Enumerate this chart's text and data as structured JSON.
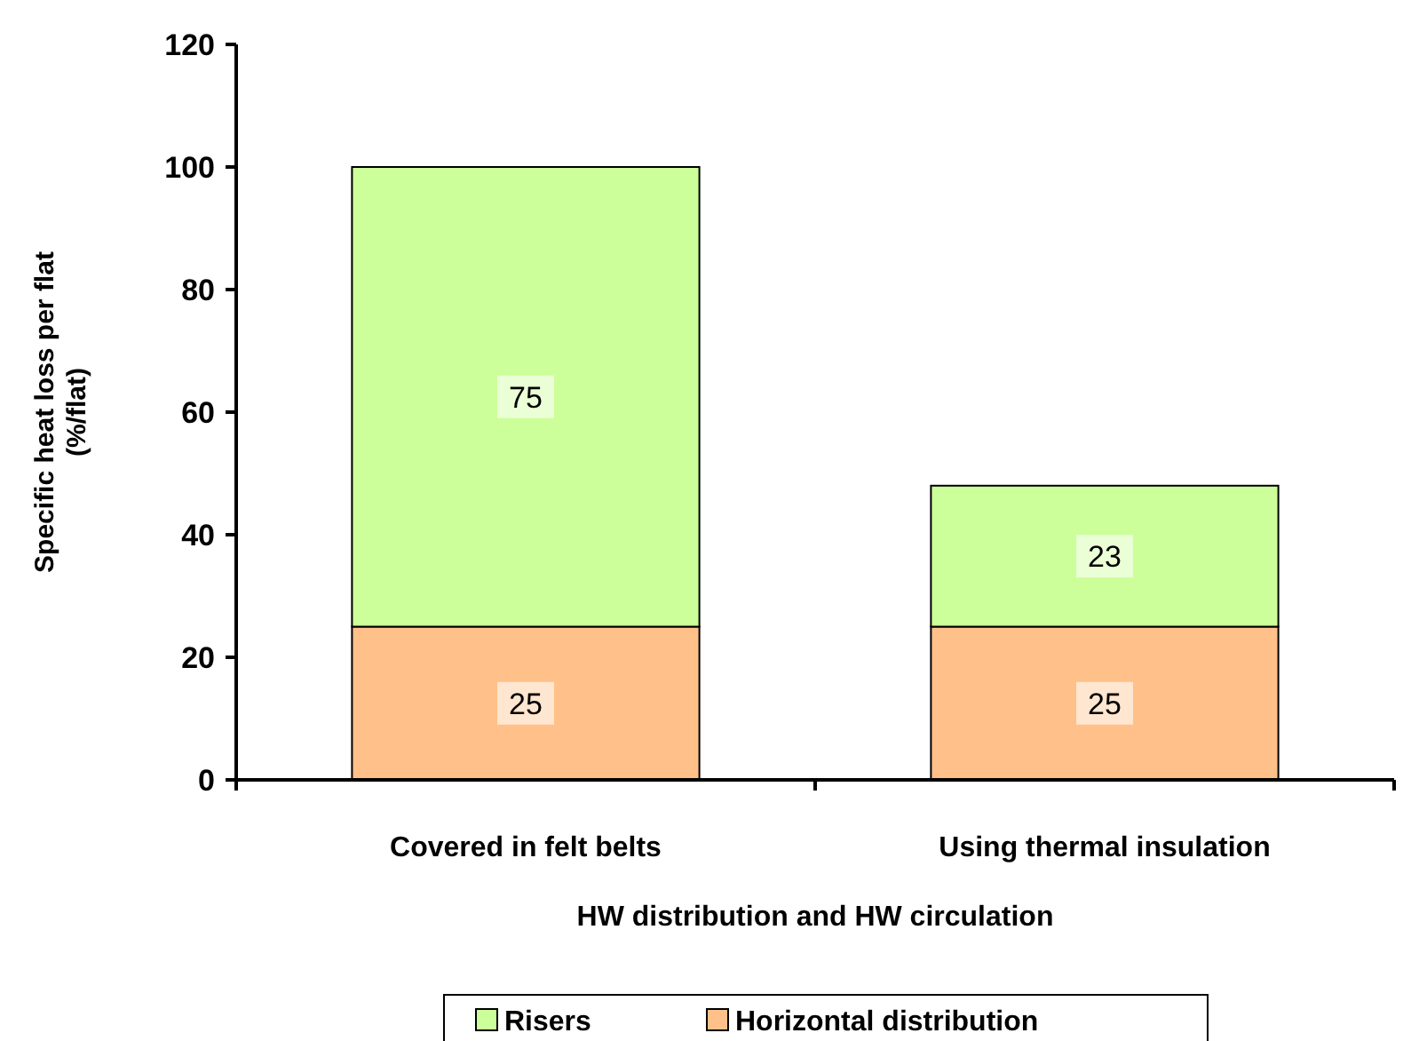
{
  "chart_data": {
    "type": "bar",
    "stacked": true,
    "categories": [
      "Covered in felt belts",
      "Using thermal insulation"
    ],
    "series": [
      {
        "name": "Horizontal distribution",
        "color": "#ffc08a",
        "values": [
          25,
          25
        ]
      },
      {
        "name": "Risers",
        "color": "#ccff99",
        "values": [
          75,
          23
        ]
      }
    ],
    "ylim": [
      0,
      120
    ],
    "yticks": [
      0,
      20,
      40,
      60,
      80,
      100,
      120
    ],
    "ylabel": "Specific heat loss per flat\n(%/flat)",
    "xlabel": "HW distribution and HW circulation",
    "data_labels": true,
    "grid": false,
    "legend": "bottom"
  }
}
